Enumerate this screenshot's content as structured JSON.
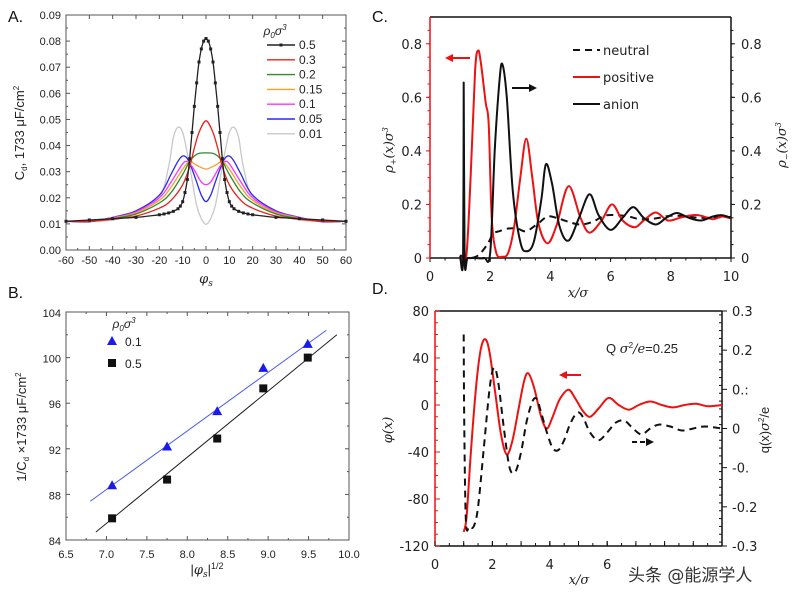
{
  "watermark": "头条 @能源学人",
  "chart_data": [
    {
      "id": "A",
      "panel_label": "A.",
      "type": "line",
      "xlabel": "φs",
      "ylabel": "Cd, 1733 μF/cm²",
      "xlim": [
        -60,
        60
      ],
      "ylim": [
        0.0,
        0.09
      ],
      "xticks": [
        -60,
        -50,
        -40,
        -30,
        -20,
        -10,
        0,
        10,
        20,
        30,
        40,
        50,
        60
      ],
      "yticks": [
        "0.00",
        "0.01",
        "0.02",
        "0.03",
        "0.04",
        "0.05",
        "0.06",
        "0.07",
        "0.08",
        "0.09"
      ],
      "legend_title": "ρ0σ3",
      "legend_position": "top-right",
      "grid": false,
      "series": [
        {
          "name": "0.5",
          "color": "#222222",
          "markers": true,
          "x": [
            -60,
            -50,
            -40,
            -30,
            -20,
            -18,
            -16,
            -14,
            -12,
            -11,
            -10,
            -9,
            -8,
            -7,
            -6,
            -5,
            -4,
            -3,
            -2,
            -1,
            0,
            1,
            2,
            3,
            4,
            5,
            6,
            7,
            8,
            9,
            10,
            11,
            12,
            14,
            16,
            18,
            20,
            30,
            40,
            50,
            60
          ],
          "y": [
            0.011,
            0.0115,
            0.012,
            0.0125,
            0.0135,
            0.0138,
            0.0142,
            0.0148,
            0.0158,
            0.0168,
            0.0185,
            0.022,
            0.027,
            0.035,
            0.045,
            0.055,
            0.064,
            0.072,
            0.077,
            0.08,
            0.081,
            0.08,
            0.077,
            0.072,
            0.064,
            0.055,
            0.045,
            0.035,
            0.027,
            0.022,
            0.0185,
            0.0168,
            0.0158,
            0.0148,
            0.0142,
            0.0138,
            0.0135,
            0.0125,
            0.012,
            0.0115,
            0.011
          ]
        },
        {
          "name": "0.3",
          "color": "#e8201a",
          "markers": false,
          "x": [
            -60,
            -50,
            -40,
            -30,
            -20,
            -15,
            -10,
            -7,
            -5,
            -3,
            0,
            3,
            5,
            7,
            10,
            15,
            20,
            30,
            40,
            50,
            60
          ],
          "y": [
            0.011,
            0.011,
            0.0118,
            0.013,
            0.016,
            0.019,
            0.025,
            0.032,
            0.039,
            0.045,
            0.0495,
            0.045,
            0.039,
            0.032,
            0.025,
            0.019,
            0.016,
            0.013,
            0.0118,
            0.011,
            0.011
          ]
        },
        {
          "name": "0.2",
          "color": "#2e8b2e",
          "markers": false,
          "x": [
            -60,
            -50,
            -40,
            -30,
            -20,
            -15,
            -10,
            -7,
            -5,
            -3,
            0,
            3,
            5,
            7,
            10,
            15,
            20,
            30,
            40,
            50,
            60
          ],
          "y": [
            0.011,
            0.011,
            0.012,
            0.0138,
            0.018,
            0.022,
            0.029,
            0.034,
            0.036,
            0.037,
            0.0372,
            0.037,
            0.036,
            0.034,
            0.029,
            0.022,
            0.018,
            0.0138,
            0.012,
            0.011,
            0.011
          ]
        },
        {
          "name": "0.15",
          "color": "#f5a030",
          "markers": false,
          "x": [
            -60,
            -50,
            -40,
            -30,
            -20,
            -15,
            -10,
            -7,
            -5,
            -3,
            0,
            3,
            5,
            7,
            10,
            15,
            20,
            30,
            40,
            50,
            60
          ],
          "y": [
            0.011,
            0.011,
            0.0122,
            0.0142,
            0.019,
            0.024,
            0.031,
            0.034,
            0.033,
            0.032,
            0.031,
            0.032,
            0.033,
            0.034,
            0.031,
            0.024,
            0.019,
            0.0142,
            0.0122,
            0.011,
            0.011
          ]
        },
        {
          "name": "0.1",
          "color": "#ff33ff",
          "markers": false,
          "x": [
            -60,
            -50,
            -40,
            -30,
            -20,
            -15,
            -10,
            -8,
            -6,
            -4,
            -2,
            0,
            2,
            4,
            6,
            8,
            10,
            15,
            20,
            30,
            40,
            50,
            60
          ],
          "y": [
            0.011,
            0.011,
            0.0124,
            0.0146,
            0.02,
            0.026,
            0.033,
            0.0338,
            0.032,
            0.029,
            0.026,
            0.025,
            0.026,
            0.029,
            0.032,
            0.0338,
            0.033,
            0.026,
            0.02,
            0.0146,
            0.0124,
            0.011,
            0.011
          ]
        },
        {
          "name": "0.05",
          "color": "#2828f0",
          "markers": false,
          "x": [
            -60,
            -50,
            -40,
            -30,
            -20,
            -15,
            -12,
            -10,
            -8,
            -6,
            -4,
            -2,
            0,
            2,
            4,
            6,
            8,
            10,
            12,
            15,
            20,
            30,
            40,
            50,
            60
          ],
          "y": [
            0.011,
            0.0108,
            0.0125,
            0.015,
            0.021,
            0.029,
            0.034,
            0.036,
            0.035,
            0.031,
            0.026,
            0.021,
            0.0185,
            0.021,
            0.026,
            0.031,
            0.035,
            0.036,
            0.034,
            0.029,
            0.021,
            0.015,
            0.0125,
            0.0108,
            0.011
          ]
        },
        {
          "name": "0.01",
          "color": "#c8c8c8",
          "markers": false,
          "x": [
            -60,
            -50,
            -40,
            -30,
            -20,
            -16,
            -14,
            -12,
            -10,
            -8,
            -6,
            -4,
            -2,
            0,
            2,
            4,
            6,
            8,
            10,
            12,
            14,
            16,
            20,
            30,
            40,
            50,
            60
          ],
          "y": [
            0.011,
            0.011,
            0.0115,
            0.014,
            0.02,
            0.032,
            0.043,
            0.047,
            0.045,
            0.037,
            0.027,
            0.017,
            0.012,
            0.0098,
            0.012,
            0.017,
            0.027,
            0.037,
            0.045,
            0.047,
            0.043,
            0.032,
            0.02,
            0.014,
            0.0115,
            0.011,
            0.011
          ]
        }
      ]
    },
    {
      "id": "B",
      "panel_label": "B.",
      "type": "scatter",
      "xlabel": "|φs|^1/2",
      "ylabel": "1/Cd ×1733 μF/cm²",
      "xlim": [
        6.5,
        10.0
      ],
      "ylim": [
        84,
        104
      ],
      "xticks": [
        "6.5",
        "7.0",
        "7.5",
        "8.0",
        "8.5",
        "9.0",
        "9.5",
        "10.0"
      ],
      "yticks": [
        "84",
        "88",
        "92",
        "96",
        "100",
        "104"
      ],
      "legend_title": "ρ0σ3",
      "legend_position": "top-left",
      "grid": false,
      "series": [
        {
          "name": "0.1",
          "color": "#1a1aee",
          "marker": "triangle",
          "x": [
            7.07,
            7.75,
            8.37,
            8.94,
            9.49
          ],
          "y": [
            88.8,
            92.2,
            95.3,
            99.1,
            101.2
          ],
          "fit": {
            "x": [
              6.8,
              9.72
            ],
            "y": [
              87.4,
              102.4
            ],
            "color": "#4a5cf0"
          }
        },
        {
          "name": "0.5",
          "color": "#111111",
          "marker": "square",
          "x": [
            7.07,
            7.75,
            8.37,
            8.94,
            9.49
          ],
          "y": [
            85.9,
            89.3,
            92.9,
            97.3,
            100.0
          ],
          "fit": {
            "x": [
              6.87,
              9.85
            ],
            "y": [
              84.7,
              102.0
            ],
            "color": "#222222"
          }
        }
      ]
    },
    {
      "id": "C",
      "panel_label": "C.",
      "type": "line",
      "xlabel": "x/σ",
      "ylabel_left": "ρ+(x)σ3",
      "ylabel_right": "ρ−(x)σ3",
      "xlim": [
        0,
        10
      ],
      "ylim": [
        0,
        0.9
      ],
      "xticks": [
        "0",
        "2",
        "4",
        "6",
        "8",
        "10"
      ],
      "yticks_left": [
        "0",
        "0.2",
        "0.4",
        "0.6",
        "0.8"
      ],
      "yticks_right": [
        "0",
        "0.2",
        "0.4",
        "0.6",
        "0.8"
      ],
      "left_axis_color": "#ee1111",
      "legend_position": "top-right",
      "grid": false,
      "series": [
        {
          "name": "neutral",
          "color": "#111111",
          "dash": true,
          "x": [
            1.0,
            1.3,
            1.6,
            1.9,
            2.1,
            2.3,
            2.6,
            2.9,
            3.2,
            3.6,
            3.9,
            4.2,
            4.6,
            5.0,
            5.4,
            5.8,
            6.2,
            6.6,
            7.0,
            7.5,
            8.0,
            8.5,
            9.0,
            9.5,
            10.0
          ],
          "y": [
            0.01,
            0.0,
            0.01,
            0.05,
            0.09,
            0.1,
            0.11,
            0.11,
            0.1,
            0.13,
            0.155,
            0.15,
            0.135,
            0.125,
            0.135,
            0.158,
            0.16,
            0.155,
            0.145,
            0.148,
            0.158,
            0.155,
            0.15,
            0.152,
            0.153
          ]
        },
        {
          "name": "positive",
          "color": "#ee1111",
          "dash": false,
          "x": [
            1.0,
            1.2,
            1.35,
            1.5,
            1.6,
            1.7,
            1.85,
            1.95,
            2.05,
            2.2,
            2.4,
            2.6,
            2.8,
            3.0,
            3.2,
            3.4,
            3.6,
            3.9,
            4.2,
            4.6,
            5.0,
            5.3,
            5.7,
            6.05,
            6.4,
            6.8,
            7.1,
            7.5,
            7.9,
            8.3,
            8.7,
            9.0,
            9.4,
            9.7,
            10.0
          ],
          "y": [
            0.0,
            0.0,
            0.3,
            0.7,
            0.775,
            0.72,
            0.58,
            0.5,
            0.15,
            0.02,
            0.005,
            0.02,
            0.12,
            0.3,
            0.445,
            0.3,
            0.13,
            0.055,
            0.12,
            0.268,
            0.15,
            0.095,
            0.14,
            0.2,
            0.14,
            0.115,
            0.14,
            0.17,
            0.14,
            0.15,
            0.16,
            0.158,
            0.145,
            0.155,
            0.148
          ]
        },
        {
          "name": "anion",
          "color": "#111111",
          "dash": false,
          "x": [
            1.0,
            1.1,
            1.12,
            1.15,
            1.25,
            1.5,
            1.8,
            2.0,
            2.15,
            2.3,
            2.4,
            2.55,
            2.75,
            3.0,
            3.2,
            3.45,
            3.7,
            3.85,
            4.05,
            4.3,
            4.6,
            4.95,
            5.3,
            5.6,
            6.0,
            6.4,
            6.75,
            7.1,
            7.5,
            7.85,
            8.2,
            8.6,
            9.0,
            9.4,
            9.7,
            10.0
          ],
          "y": [
            0.01,
            0.0,
            0.655,
            0.005,
            0.0,
            0.0,
            0.0,
            0.02,
            0.4,
            0.65,
            0.725,
            0.6,
            0.25,
            0.06,
            0.025,
            0.06,
            0.22,
            0.35,
            0.28,
            0.12,
            0.065,
            0.15,
            0.238,
            0.16,
            0.105,
            0.15,
            0.19,
            0.15,
            0.125,
            0.15,
            0.168,
            0.15,
            0.14,
            0.155,
            0.16,
            0.15
          ]
        }
      ],
      "annotations": [
        {
          "type": "arrow",
          "direction": "left",
          "color": "#ee1111",
          "meaning": "red curve uses left axis"
        },
        {
          "type": "arrow",
          "direction": "right",
          "color": "#111111",
          "meaning": "black curve uses right axis"
        }
      ]
    },
    {
      "id": "D",
      "panel_label": "D.",
      "type": "line",
      "xlabel": "x/σ",
      "ylabel_left": "φ(x)",
      "ylabel_right": "q(x)σ2/e",
      "xlim": [
        0,
        10
      ],
      "ylim_left": [
        -120,
        80
      ],
      "ylim_right": [
        -0.3,
        0.3
      ],
      "xticks": [
        "0",
        "2",
        "4",
        "6"
      ],
      "yticks_left": [
        "-120",
        "-80",
        "-40",
        "0",
        "40",
        "80"
      ],
      "yticks_right": [
        "-0.3",
        "-0.2",
        "-0.",
        "0",
        "0.:",
        "0.2",
        "0.3"
      ],
      "left_axis_color": "#ee1111",
      "annotation_text": "Q σ2/e=0.25",
      "grid": false,
      "series": [
        {
          "name": "φ(x)",
          "axis": "left",
          "color": "#ee1111",
          "dash": false,
          "x": [
            1.0,
            1.1,
            1.25,
            1.45,
            1.6,
            1.75,
            1.9,
            2.1,
            2.3,
            2.5,
            2.7,
            2.9,
            3.1,
            3.25,
            3.45,
            3.7,
            3.9,
            4.1,
            4.35,
            4.65,
            4.9,
            5.15,
            5.4,
            5.7,
            6.05,
            6.4,
            6.75,
            7.1,
            7.5,
            7.9,
            8.3,
            8.7,
            9.1,
            9.5,
            10.0
          ],
          "y": [
            -108,
            -95,
            -40,
            20,
            48,
            56,
            45,
            10,
            -25,
            -42,
            -30,
            -5,
            20,
            27,
            15,
            -10,
            -20,
            -10,
            5,
            13,
            5,
            -5,
            -10,
            -3,
            6,
            0,
            -4,
            0,
            3,
            0,
            -2,
            0,
            1,
            -1,
            0
          ]
        },
        {
          "name": "q(x)σ2/e",
          "axis": "right",
          "color": "#111111",
          "dash": true,
          "x": [
            1.0,
            1.02,
            1.08,
            1.2,
            1.35,
            1.5,
            1.7,
            1.9,
            2.05,
            2.2,
            2.4,
            2.6,
            2.8,
            3.0,
            3.2,
            3.4,
            3.55,
            3.7,
            3.9,
            4.1,
            4.3,
            4.5,
            4.7,
            4.95,
            5.15,
            5.4,
            5.7,
            6.0,
            6.3,
            6.6,
            6.9,
            7.2,
            7.5,
            7.8,
            8.2,
            8.6,
            9.0,
            9.4,
            10.0
          ],
          "y": [
            0.24,
            0.0,
            -0.24,
            -0.25,
            -0.25,
            -0.2,
            -0.05,
            0.1,
            0.155,
            0.12,
            0.0,
            -0.1,
            -0.11,
            -0.06,
            0.02,
            0.07,
            0.075,
            0.04,
            -0.01,
            -0.05,
            -0.055,
            -0.03,
            0.01,
            0.04,
            0.03,
            -0.01,
            -0.03,
            -0.01,
            0.015,
            0.02,
            0.0,
            -0.015,
            0.0,
            0.01,
            0.005,
            -0.005,
            0.0,
            0.005,
            0.0
          ]
        }
      ],
      "annotations": [
        {
          "type": "arrow",
          "direction": "left",
          "color": "#ee1111",
          "meaning": "red curve uses left axis"
        },
        {
          "type": "arrow",
          "direction": "right",
          "color": "#111111",
          "dash": true,
          "meaning": "dashed curve uses right axis"
        }
      ]
    }
  ]
}
